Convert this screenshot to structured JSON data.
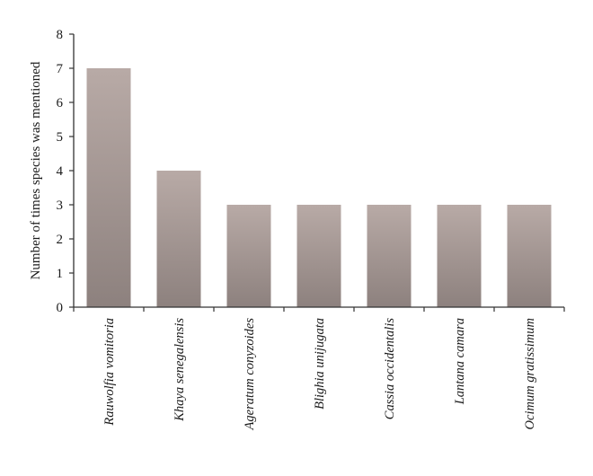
{
  "chart_data": {
    "type": "bar",
    "categories": [
      "Rauwolfia vomitoria",
      "Khaya senegalensis",
      "Ageratum conyzoides",
      "Blighia unijugata",
      "Cassia occidentalis",
      "Lantana camara",
      "Ocimum gratissimum"
    ],
    "values": [
      7,
      4,
      3,
      3,
      3,
      3,
      3
    ],
    "title": "",
    "xlabel": "",
    "ylabel": "Number of times species was mentioned",
    "ylim": [
      0,
      8
    ],
    "yticks": [
      "0",
      "1",
      "2",
      "3",
      "4",
      "5",
      "6",
      "7",
      "8"
    ],
    "grid": false,
    "legend": "none",
    "bar_color_top": "#b8aaa6",
    "bar_color_bottom": "#8d817e",
    "axis_color": "#333333"
  }
}
